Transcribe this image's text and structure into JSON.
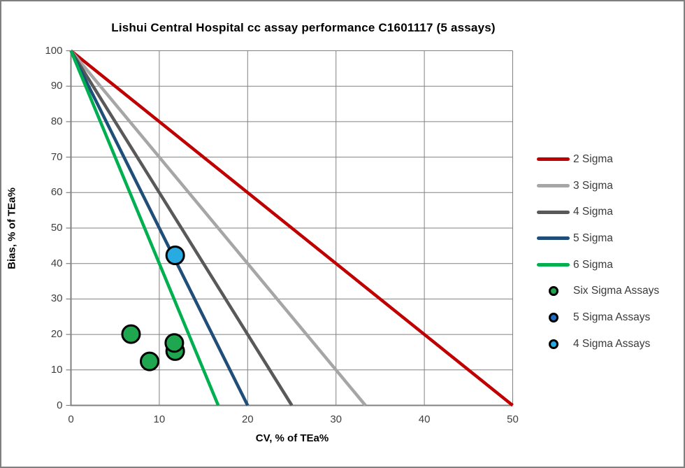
{
  "window": {
    "border_color": "#7F7F7F",
    "background": "#FFFFFF"
  },
  "chart_data": {
    "type": "scatter",
    "title": "Lishui Central Hospital cc assay performance C1601117 (5 assays)",
    "xlabel": "CV, % of TEa%",
    "ylabel": "Bias, % of TEa%",
    "xlim": [
      0,
      50
    ],
    "ylim": [
      0,
      100
    ],
    "x_ticks": [
      0,
      10,
      20,
      30,
      40,
      50
    ],
    "y_ticks": [
      0,
      10,
      20,
      30,
      40,
      50,
      60,
      70,
      80,
      90,
      100
    ],
    "grid": true,
    "grid_color": "#808080",
    "axis_color": "#808080",
    "tick_label_color": "#404040",
    "sigma_lines": [
      {
        "name": "2 Sigma",
        "sigma": 2,
        "color": "#C00000",
        "points": [
          [
            0,
            100
          ],
          [
            50,
            0
          ]
        ]
      },
      {
        "name": "3 Sigma",
        "sigma": 3,
        "color": "#A6A6A6",
        "points": [
          [
            0,
            100
          ],
          [
            33.33,
            0
          ]
        ]
      },
      {
        "name": "4 Sigma",
        "sigma": 4,
        "color": "#595959",
        "points": [
          [
            0,
            100
          ],
          [
            25,
            0
          ]
        ]
      },
      {
        "name": "5 Sigma",
        "sigma": 5,
        "color": "#1F4E79",
        "points": [
          [
            0,
            100
          ],
          [
            20,
            0
          ]
        ]
      },
      {
        "name": "6 Sigma",
        "sigma": 6,
        "color": "#00B050",
        "points": [
          [
            0,
            100
          ],
          [
            16.67,
            0
          ]
        ]
      }
    ],
    "point_series": [
      {
        "name": "Six Sigma Assays",
        "color": "#1FA750",
        "points": [
          [
            6.8,
            20.1
          ],
          [
            8.9,
            12.4
          ],
          [
            11.8,
            15.3
          ],
          [
            11.7,
            17.6
          ]
        ]
      },
      {
        "name": "5 Sigma Assays",
        "color": "#1E6FC1",
        "points": []
      },
      {
        "name": "4 Sigma Assays",
        "color": "#29ABE2",
        "points": [
          [
            11.8,
            42.3
          ]
        ]
      }
    ],
    "marker": {
      "radius": 12.5,
      "stroke": "#000000",
      "stroke_width": 3
    },
    "line_width": 4.5
  }
}
